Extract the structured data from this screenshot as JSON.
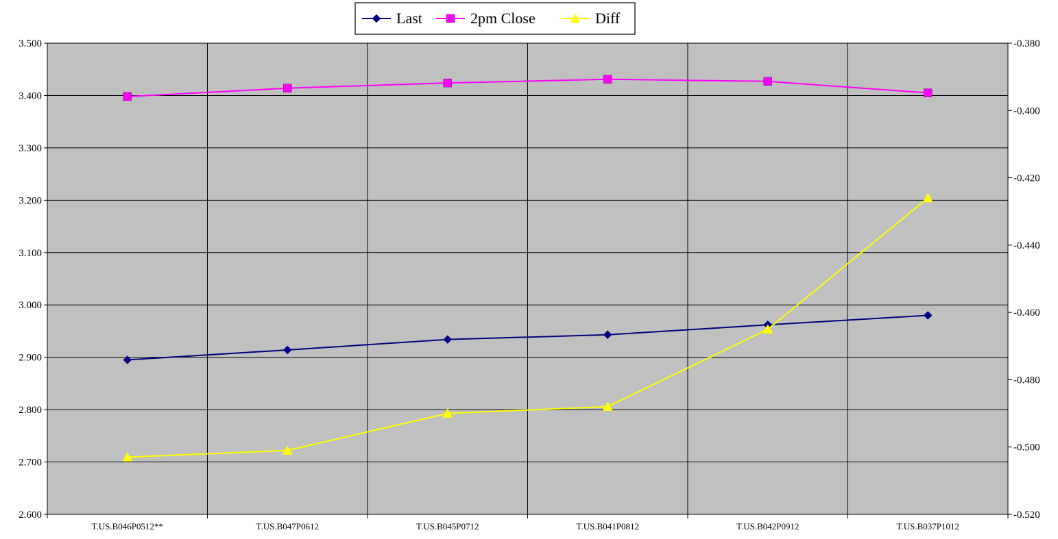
{
  "chart_data": {
    "type": "line",
    "title": "",
    "xlabel": "",
    "ylabel": "",
    "categories": [
      "T.US.B046P0512**",
      "T.US.B047P0612",
      "T.US.B045P0712",
      "T.US.B041P0812",
      "T.US.B042P0912",
      "T.US.B037P1012"
    ],
    "y_left": {
      "min": 2.6,
      "max": 3.5,
      "step": 0.1,
      "ticks": [
        "2.600",
        "2.700",
        "2.800",
        "2.900",
        "3.000",
        "3.100",
        "3.200",
        "3.300",
        "3.400",
        "3.500"
      ]
    },
    "y_right": {
      "min": -0.52,
      "max": -0.38,
      "step": 0.02,
      "ticks": [
        "-0.520",
        "-0.500",
        "-0.480",
        "-0.460",
        "-0.440",
        "-0.420",
        "-0.400",
        "-0.380"
      ]
    },
    "grid": true,
    "legend": {
      "placement": "top-center"
    },
    "series": [
      {
        "name": "Last",
        "axis": "left",
        "marker": "diamond",
        "color": "#000080",
        "values": [
          2.895,
          2.914,
          2.934,
          2.943,
          2.962,
          2.98
        ]
      },
      {
        "name": "2pm Close",
        "axis": "left",
        "marker": "square",
        "color": "#FF00FF",
        "values": [
          3.398,
          3.414,
          3.424,
          3.431,
          3.427,
          3.405
        ]
      },
      {
        "name": "Diff",
        "axis": "right",
        "marker": "triangle",
        "color": "#FFFF00",
        "values": [
          -0.503,
          -0.501,
          -0.49,
          -0.488,
          -0.465,
          -0.426
        ]
      }
    ],
    "plot_background": "#C0C0C0"
  }
}
